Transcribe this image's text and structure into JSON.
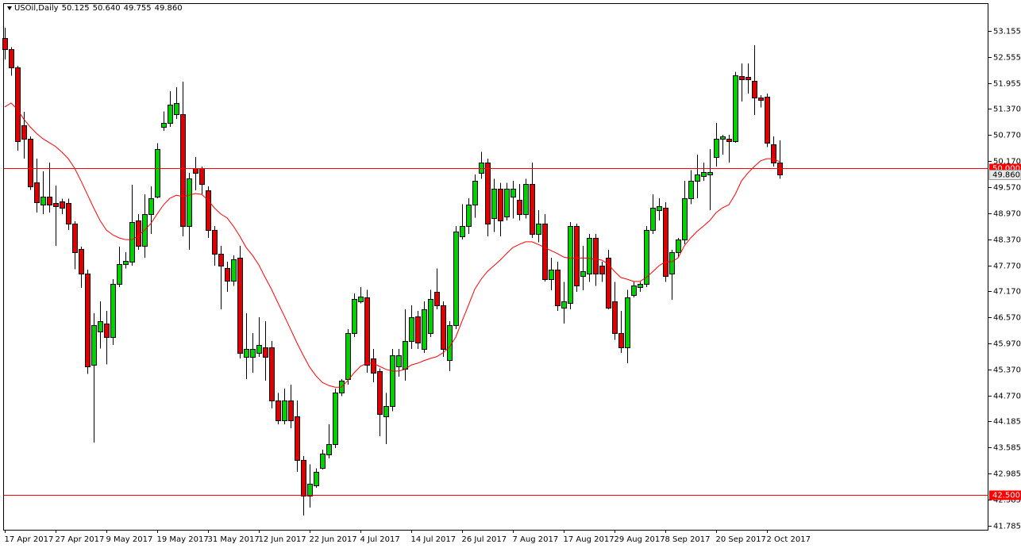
{
  "chart_data": {
    "type": "candlestick",
    "title": "USOil,Daily",
    "quote_labels": [
      "50.125",
      "50.640",
      "49.755",
      "49.860"
    ],
    "categories": [
      "17 Apr 2017",
      null,
      null,
      null,
      null,
      null,
      null,
      null,
      "27 Apr 2017",
      null,
      null,
      null,
      null,
      null,
      null,
      null,
      "9 May 2017",
      null,
      null,
      null,
      null,
      null,
      null,
      null,
      "19 May 2017",
      null,
      null,
      null,
      null,
      null,
      null,
      null,
      "31 May 2017",
      null,
      null,
      null,
      null,
      null,
      null,
      null,
      "12 Jun 2017",
      null,
      null,
      null,
      null,
      null,
      null,
      null,
      "22 Jun 2017",
      null,
      null,
      null,
      null,
      null,
      null,
      null,
      "4 Jul 2017",
      null,
      null,
      null,
      null,
      null,
      null,
      null,
      "14 Jul 2017",
      null,
      null,
      null,
      null,
      null,
      null,
      null,
      "26 Jul 2017",
      null,
      null,
      null,
      null,
      null,
      null,
      null,
      "7 Aug 2017",
      null,
      null,
      null,
      null,
      null,
      null,
      null,
      "17 Aug 2017",
      null,
      null,
      null,
      null,
      null,
      null,
      null,
      "29 Aug 2017",
      null,
      null,
      null,
      null,
      null,
      null,
      null,
      "8 Sep 2017",
      null,
      null,
      null,
      null,
      null,
      null,
      null,
      "20 Sep 2017",
      null,
      null,
      null,
      null,
      null,
      null,
      null,
      "2 Oct 2017",
      null,
      null
    ],
    "candles": {
      "up_color": "#00d200",
      "down_color": "#e00000",
      "outline_color": "#000000",
      "open": [
        52.99,
        52.74,
        52.32,
        50.99,
        50.68,
        49.67,
        49.16,
        49.35,
        49.2,
        49.24,
        49.2,
        48.73,
        48.14,
        47.58,
        45.49,
        46.25,
        46.43,
        46.12,
        47.34,
        47.8,
        47.85,
        48.8,
        48.22,
        48.95,
        49.35,
        50.95,
        51.04,
        51.24,
        51.24,
        48.67,
        50.0,
        50.0,
        49.49,
        48.58,
        48.04,
        47.7,
        47.4,
        47.94,
        45.67,
        45.67,
        45.76,
        45.88,
        45.88,
        44.66,
        44.21,
        44.66,
        44.3,
        43.3,
        42.48,
        42.71,
        43.11,
        43.42,
        43.66,
        44.84,
        45.16,
        46.21,
        46.94,
        47.03,
        45.63,
        45.34,
        44.3,
        44.53,
        45.45,
        45.4,
        46.03,
        46.6,
        45.85,
        46.21,
        47.16,
        46.85,
        45.58,
        46.39,
        48.44,
        48.67,
        49.17,
        49.89,
        50.13,
        48.85,
        49.53,
        48.9,
        49.35,
        49.27,
        48.95,
        49.64,
        48.49,
        48.73,
        47.45,
        47.67,
        46.79,
        46.9,
        48.67,
        47.52,
        47.58,
        48.4,
        47.76,
        47.94,
        46.94,
        46.21,
        45.88,
        47.08,
        47.27,
        47.34,
        48.58,
        49.04,
        49.09,
        47.58,
        48.07,
        48.36,
        49.31,
        49.71,
        49.82,
        49.86,
        50.26,
        50.68,
        50.68,
        50.62,
        52.11,
        52.1,
        52.0,
        51.62,
        51.64,
        50.55,
        50.125
      ],
      "high": [
        53.23,
        52.78,
        52.35,
        51.3,
        50.73,
        50.22,
        49.93,
        50.13,
        49.6,
        49.3,
        49.3,
        48.78,
        48.2,
        47.67,
        46.67,
        46.94,
        46.72,
        47.45,
        48.2,
        48.07,
        49.62,
        48.95,
        49.4,
        49.58,
        50.58,
        51.31,
        51.77,
        51.86,
        51.99,
        49.89,
        50.26,
        50.04,
        49.58,
        48.67,
        48.22,
        47.85,
        48.0,
        48.22,
        46.67,
        46.21,
        46.58,
        46.49,
        46.03,
        44.84,
        44.94,
        45.03,
        44.66,
        43.39,
        43.2,
        43.11,
        43.53,
        44.12,
        44.94,
        45.16,
        46.3,
        47.12,
        47.27,
        47.21,
        45.85,
        45.4,
        44.84,
        45.85,
        45.85,
        46.76,
        46.85,
        46.72,
        46.94,
        47.21,
        47.7,
        46.94,
        46.49,
        48.67,
        49.17,
        49.31,
        49.86,
        50.38,
        50.22,
        49.76,
        49.67,
        49.67,
        49.71,
        49.64,
        49.76,
        50.13,
        49.04,
        48.95,
        47.94,
        47.85,
        47.39,
        48.76,
        48.73,
        48.22,
        48.49,
        48.49,
        47.85,
        48.13,
        47.39,
        46.72,
        47.21,
        47.39,
        47.39,
        48.67,
        49.4,
        49.31,
        49.22,
        48.13,
        48.4,
        49.71,
        49.96,
        50.31,
        50.13,
        50.44,
        51.04,
        50.77,
        50.77,
        52.22,
        52.41,
        52.41,
        52.83,
        51.68,
        51.72,
        50.73,
        50.64
      ],
      "low": [
        52.5,
        52.13,
        50.4,
        50.22,
        49.5,
        48.98,
        48.95,
        48.98,
        48.22,
        48.95,
        48.58,
        47.68,
        47.25,
        45.27,
        43.7,
        45.86,
        45.49,
        45.94,
        47.27,
        47.7,
        47.76,
        48.13,
        47.94,
        48.49,
        49.31,
        50.86,
        50.95,
        51.13,
        48.44,
        48.13,
        49.49,
        49.4,
        48.4,
        47.76,
        46.76,
        47.16,
        47.3,
        45.63,
        45.16,
        45.3,
        45.67,
        45.12,
        44.48,
        44.12,
        44.12,
        44.03,
        43.02,
        42.02,
        42.2,
        42.66,
        43.08,
        43.33,
        43.57,
        44.76,
        45.03,
        46.12,
        46.9,
        45.3,
        45.08,
        43.84,
        43.66,
        44.42,
        45.21,
        45.12,
        45.85,
        45.85,
        45.76,
        46.12,
        46.76,
        45.67,
        45.34,
        46.3,
        48.36,
        48.49,
        48.86,
        49.76,
        48.44,
        48.54,
        48.44,
        48.8,
        48.85,
        48.8,
        48.85,
        48.4,
        48.3,
        47.4,
        47.2,
        46.72,
        46.43,
        46.76,
        47.16,
        47.2,
        47.39,
        47.3,
        47.39,
        46.76,
        46.06,
        45.76,
        45.52,
        47.03,
        47.16,
        47.27,
        48.49,
        48.8,
        47.39,
        46.98,
        47.94,
        48.25,
        49.17,
        49.31,
        49.71,
        49.04,
        50.04,
        50.31,
        50.13,
        50.59,
        51.53,
        51.72,
        51.22,
        51.4,
        50.49,
        50.04,
        49.755
      ],
      "close": [
        52.74,
        52.32,
        50.62,
        50.68,
        49.58,
        49.22,
        49.35,
        49.16,
        49.12,
        49.1,
        48.73,
        48.07,
        47.58,
        45.45,
        46.4,
        46.49,
        46.12,
        47.34,
        47.8,
        47.87,
        48.76,
        48.22,
        48.95,
        49.31,
        50.44,
        51.04,
        51.46,
        51.5,
        48.67,
        49.76,
        49.89,
        49.64,
        48.58,
        48.04,
        47.76,
        47.4,
        47.9,
        45.76,
        45.85,
        45.85,
        45.94,
        45.67,
        44.66,
        44.21,
        44.66,
        44.21,
        43.3,
        42.48,
        42.75,
        43.02,
        43.44,
        43.66,
        44.84,
        45.12,
        46.21,
        46.99,
        47.05,
        45.49,
        45.3,
        44.35,
        44.53,
        45.7,
        45.7,
        46.03,
        46.58,
        45.99,
        46.76,
        46.99,
        46.85,
        45.85,
        46.39,
        48.54,
        48.67,
        49.17,
        49.71,
        50.13,
        48.73,
        49.53,
        48.8,
        49.53,
        49.53,
        48.95,
        49.64,
        48.49,
        48.73,
        47.45,
        47.67,
        46.85,
        46.94,
        48.67,
        47.3,
        47.63,
        48.4,
        47.58,
        47.58,
        46.79,
        46.21,
        45.88,
        47.03,
        47.3,
        47.34,
        48.58,
        49.09,
        49.13,
        47.52,
        48.07,
        48.36,
        49.31,
        49.71,
        49.86,
        49.91,
        49.91,
        50.68,
        50.73,
        50.62,
        52.13,
        52.04,
        52.04,
        51.62,
        51.57,
        50.59,
        50.13,
        49.86
      ]
    },
    "moving_average": {
      "color": "#ff0000",
      "values": [
        51.41,
        51.5,
        51.35,
        51.13,
        50.95,
        50.8,
        50.68,
        50.59,
        50.5,
        50.37,
        50.22,
        50.0,
        49.71,
        49.4,
        49.09,
        48.8,
        48.58,
        48.47,
        48.4,
        48.36,
        48.36,
        48.44,
        48.58,
        48.73,
        48.95,
        49.16,
        49.31,
        49.38,
        49.35,
        49.38,
        49.42,
        49.4,
        49.27,
        49.09,
        48.95,
        48.86,
        48.67,
        48.44,
        48.18,
        48.0,
        47.78,
        47.49,
        47.22,
        46.91,
        46.61,
        46.3,
        45.99,
        45.7,
        45.43,
        45.23,
        45.08,
        45.01,
        44.97,
        44.97,
        45.12,
        45.3,
        45.45,
        45.52,
        45.52,
        45.45,
        45.38,
        45.34,
        45.34,
        45.38,
        45.48,
        45.52,
        45.58,
        45.63,
        45.67,
        45.76,
        45.89,
        46.12,
        46.49,
        46.85,
        47.22,
        47.45,
        47.63,
        47.76,
        47.89,
        48.04,
        48.18,
        48.25,
        48.31,
        48.31,
        48.25,
        48.18,
        48.11,
        48.04,
        47.96,
        47.93,
        47.93,
        47.94,
        47.93,
        47.91,
        47.89,
        47.8,
        47.63,
        47.49,
        47.45,
        47.4,
        47.4,
        47.49,
        47.62,
        47.76,
        47.85,
        47.85,
        47.94,
        48.22,
        48.4,
        48.55,
        48.67,
        48.8,
        48.98,
        49.09,
        49.16,
        49.4,
        49.71,
        49.89,
        50.04,
        50.17,
        50.22,
        50.22,
        50.15
      ]
    },
    "levels": [
      {
        "value": 50,
        "label": "50.000"
      },
      {
        "value": 42.5,
        "label": "42.500"
      }
    ],
    "level_color": "#ff0000",
    "last_price": {
      "value": 49.86,
      "label": "49.860"
    },
    "ylim": [
      41.694,
      53.793
    ],
    "yticks": [
      53.155,
      52.555,
      51.955,
      {
        "value": 51.37,
        "label": "51.370"
      },
      {
        "value": 50.77,
        "label": "50.770"
      },
      {
        "value": 50.17,
        "label": "50.170"
      },
      {
        "value": 49.57,
        "label": "49.570"
      },
      {
        "value": 48.97,
        "label": "48.970"
      },
      {
        "value": 48.37,
        "label": "48.370"
      },
      {
        "value": 47.77,
        "label": "47.770"
      },
      {
        "value": 47.17,
        "label": "47.170"
      },
      {
        "value": 46.57,
        "label": "46.570"
      },
      {
        "value": 45.97,
        "label": "45.970"
      },
      {
        "value": 45.37,
        "label": "45.370"
      },
      {
        "value": 44.77,
        "label": "44.770"
      },
      44.185,
      43.585,
      42.985,
      42.385,
      41.785
    ]
  }
}
